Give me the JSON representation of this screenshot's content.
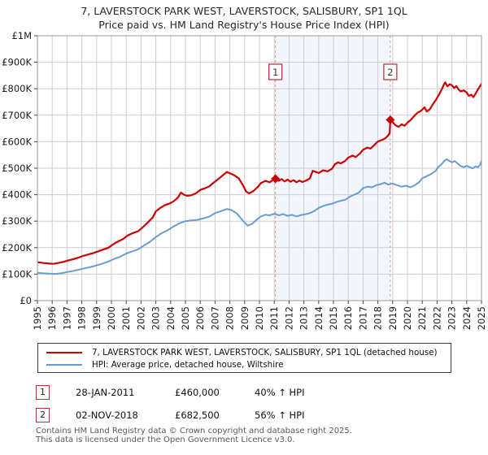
{
  "page": {
    "title_line1": "7, LAVERSTOCK PARK WEST, LAVERSTOCK, SALISBURY, SP1 1QL",
    "title_line2": "Price paid vs. HM Land Registry's House Price Index (HPI)"
  },
  "chart_data": {
    "type": "line",
    "title": "7, LAVERSTOCK PARK WEST, LAVERSTOCK, SALISBURY, SP1 1QL — Price paid vs. HM Land Registry's House Price Index (HPI)",
    "xlabel": "",
    "ylabel": "",
    "xlim": [
      1995,
      2025
    ],
    "ylim_gbp": [
      0,
      1000000
    ],
    "grid": true,
    "values_unit": "GBP thousands",
    "x_ticks": [
      1995,
      1996,
      1997,
      1998,
      1999,
      2000,
      2001,
      2002,
      2003,
      2004,
      2005,
      2006,
      2007,
      2008,
      2009,
      2010,
      2011,
      2012,
      2013,
      2014,
      2015,
      2016,
      2017,
      2018,
      2019,
      2020,
      2021,
      2022,
      2023,
      2024,
      2025
    ],
    "y_ticks": [
      {
        "v": 0,
        "label": "£0"
      },
      {
        "v": 100,
        "label": "£100K"
      },
      {
        "v": 200,
        "label": "£200K"
      },
      {
        "v": 300,
        "label": "£300K"
      },
      {
        "v": 400,
        "label": "£400K"
      },
      {
        "v": 500,
        "label": "£500K"
      },
      {
        "v": 600,
        "label": "£600K"
      },
      {
        "v": 700,
        "label": "£700K"
      },
      {
        "v": 800,
        "label": "£800K"
      },
      {
        "v": 900,
        "label": "£900K"
      },
      {
        "v": 1000,
        "label": "£1M"
      }
    ],
    "shaded_span": {
      "from": 2011.08,
      "to": 2018.84,
      "color": "#f2f5fc"
    },
    "colors": {
      "grid": "#cccccc",
      "border": "#999999",
      "dashed_line": "#e89090",
      "tick": "#444444"
    },
    "series": [
      {
        "name": "7, LAVERSTOCK PARK WEST, LAVERSTOCK, SALISBURY, SP1 1QL (detached house)",
        "color": "#cc0000",
        "width": 2.2,
        "points": [
          [
            1995.0,
            145
          ],
          [
            1995.4,
            142
          ],
          [
            1995.8,
            140
          ],
          [
            1996.1,
            139
          ],
          [
            1996.4,
            142
          ],
          [
            1996.8,
            147
          ],
          [
            1997.1,
            152
          ],
          [
            1997.4,
            156
          ],
          [
            1997.8,
            163
          ],
          [
            1998.1,
            169
          ],
          [
            1998.4,
            174
          ],
          [
            1998.8,
            180
          ],
          [
            1999.1,
            186
          ],
          [
            1999.4,
            192
          ],
          [
            1999.8,
            200
          ],
          [
            2000.1,
            212
          ],
          [
            2000.4,
            222
          ],
          [
            2000.8,
            233
          ],
          [
            2001.1,
            246
          ],
          [
            2001.4,
            254
          ],
          [
            2001.8,
            262
          ],
          [
            2002.1,
            276
          ],
          [
            2002.4,
            292
          ],
          [
            2002.8,
            315
          ],
          [
            2003.0,
            337
          ],
          [
            2003.3,
            350
          ],
          [
            2003.6,
            360
          ],
          [
            2003.9,
            366
          ],
          [
            2004.2,
            375
          ],
          [
            2004.5,
            390
          ],
          [
            2004.7,
            408
          ],
          [
            2004.9,
            400
          ],
          [
            2005.1,
            396
          ],
          [
            2005.4,
            398
          ],
          [
            2005.7,
            405
          ],
          [
            2006.0,
            418
          ],
          [
            2006.3,
            424
          ],
          [
            2006.6,
            431
          ],
          [
            2006.9,
            445
          ],
          [
            2007.2,
            458
          ],
          [
            2007.5,
            472
          ],
          [
            2007.8,
            486
          ],
          [
            2008.0,
            481
          ],
          [
            2008.3,
            473
          ],
          [
            2008.6,
            462
          ],
          [
            2008.9,
            434
          ],
          [
            2009.1,
            412
          ],
          [
            2009.3,
            405
          ],
          [
            2009.6,
            414
          ],
          [
            2009.9,
            430
          ],
          [
            2010.1,
            444
          ],
          [
            2010.4,
            452
          ],
          [
            2010.7,
            447
          ],
          [
            2010.9,
            455
          ],
          [
            2011.08,
            460
          ],
          [
            2011.3,
            452
          ],
          [
            2011.5,
            459
          ],
          [
            2011.7,
            450
          ],
          [
            2011.9,
            457
          ],
          [
            2012.1,
            449
          ],
          [
            2012.3,
            455
          ],
          [
            2012.5,
            447
          ],
          [
            2012.7,
            453
          ],
          [
            2012.9,
            448
          ],
          [
            2013.1,
            452
          ],
          [
            2013.4,
            461
          ],
          [
            2013.6,
            490
          ],
          [
            2013.8,
            486
          ],
          [
            2014.0,
            482
          ],
          [
            2014.3,
            492
          ],
          [
            2014.6,
            488
          ],
          [
            2014.9,
            498
          ],
          [
            2015.1,
            515
          ],
          [
            2015.3,
            522
          ],
          [
            2015.5,
            518
          ],
          [
            2015.8,
            528
          ],
          [
            2016.0,
            540
          ],
          [
            2016.3,
            548
          ],
          [
            2016.5,
            542
          ],
          [
            2016.8,
            556
          ],
          [
            2017.0,
            570
          ],
          [
            2017.3,
            578
          ],
          [
            2017.5,
            574
          ],
          [
            2017.8,
            590
          ],
          [
            2018.0,
            601
          ],
          [
            2018.3,
            607
          ],
          [
            2018.5,
            613
          ],
          [
            2018.7,
            624
          ],
          [
            2018.8,
            634
          ],
          [
            2018.84,
            682.5
          ],
          [
            2019.0,
            674
          ],
          [
            2019.2,
            662
          ],
          [
            2019.4,
            656
          ],
          [
            2019.6,
            666
          ],
          [
            2019.8,
            660
          ],
          [
            2020.0,
            672
          ],
          [
            2020.2,
            681
          ],
          [
            2020.5,
            700
          ],
          [
            2020.7,
            710
          ],
          [
            2020.9,
            716
          ],
          [
            2021.05,
            724
          ],
          [
            2021.15,
            730
          ],
          [
            2021.3,
            714
          ],
          [
            2021.5,
            722
          ],
          [
            2021.7,
            740
          ],
          [
            2021.9,
            756
          ],
          [
            2022.1,
            775
          ],
          [
            2022.3,
            796
          ],
          [
            2022.45,
            815
          ],
          [
            2022.55,
            824
          ],
          [
            2022.7,
            809
          ],
          [
            2022.85,
            817
          ],
          [
            2023.0,
            813
          ],
          [
            2023.15,
            803
          ],
          [
            2023.3,
            810
          ],
          [
            2023.45,
            797
          ],
          [
            2023.6,
            790
          ],
          [
            2023.8,
            794
          ],
          [
            2024.0,
            786
          ],
          [
            2024.15,
            773
          ],
          [
            2024.3,
            778
          ],
          [
            2024.45,
            768
          ],
          [
            2024.6,
            781
          ],
          [
            2024.75,
            797
          ],
          [
            2024.9,
            810
          ],
          [
            2025.0,
            818
          ]
        ]
      },
      {
        "name": "HPI: Average price, detached house, Wiltshire",
        "color": "#6b9bd2",
        "width": 2,
        "points": [
          [
            1995.0,
            105
          ],
          [
            1995.4,
            103
          ],
          [
            1995.8,
            102
          ],
          [
            1996.2,
            101
          ],
          [
            1996.6,
            103
          ],
          [
            1997.0,
            108
          ],
          [
            1997.4,
            112
          ],
          [
            1997.8,
            117
          ],
          [
            1998.2,
            122
          ],
          [
            1998.6,
            127
          ],
          [
            1999.0,
            133
          ],
          [
            1999.4,
            140
          ],
          [
            1999.8,
            148
          ],
          [
            2000.2,
            158
          ],
          [
            2000.6,
            166
          ],
          [
            2001.0,
            178
          ],
          [
            2001.4,
            186
          ],
          [
            2001.8,
            194
          ],
          [
            2002.2,
            208
          ],
          [
            2002.6,
            222
          ],
          [
            2003.0,
            240
          ],
          [
            2003.4,
            255
          ],
          [
            2003.8,
            266
          ],
          [
            2004.2,
            280
          ],
          [
            2004.6,
            292
          ],
          [
            2005.0,
            300
          ],
          [
            2005.4,
            303
          ],
          [
            2005.8,
            305
          ],
          [
            2006.2,
            310
          ],
          [
            2006.6,
            317
          ],
          [
            2007.0,
            330
          ],
          [
            2007.4,
            338
          ],
          [
            2007.8,
            346
          ],
          [
            2008.1,
            342
          ],
          [
            2008.5,
            328
          ],
          [
            2008.9,
            300
          ],
          [
            2009.2,
            283
          ],
          [
            2009.5,
            290
          ],
          [
            2009.8,
            305
          ],
          [
            2010.1,
            318
          ],
          [
            2010.4,
            324
          ],
          [
            2010.7,
            322
          ],
          [
            2011.0,
            328
          ],
          [
            2011.3,
            322
          ],
          [
            2011.6,
            327
          ],
          [
            2011.9,
            320
          ],
          [
            2012.2,
            324
          ],
          [
            2012.5,
            318
          ],
          [
            2012.8,
            323
          ],
          [
            2013.1,
            326
          ],
          [
            2013.4,
            330
          ],
          [
            2013.7,
            338
          ],
          [
            2014.0,
            350
          ],
          [
            2014.3,
            357
          ],
          [
            2014.6,
            362
          ],
          [
            2014.9,
            366
          ],
          [
            2015.2,
            372
          ],
          [
            2015.5,
            377
          ],
          [
            2015.8,
            381
          ],
          [
            2016.1,
            392
          ],
          [
            2016.4,
            400
          ],
          [
            2016.7,
            407
          ],
          [
            2017.0,
            425
          ],
          [
            2017.3,
            430
          ],
          [
            2017.6,
            428
          ],
          [
            2017.9,
            436
          ],
          [
            2018.2,
            440
          ],
          [
            2018.45,
            445
          ],
          [
            2018.7,
            438
          ],
          [
            2019.0,
            442
          ],
          [
            2019.3,
            436
          ],
          [
            2019.6,
            430
          ],
          [
            2019.9,
            434
          ],
          [
            2020.2,
            428
          ],
          [
            2020.5,
            436
          ],
          [
            2020.8,
            448
          ],
          [
            2021.0,
            462
          ],
          [
            2021.3,
            470
          ],
          [
            2021.6,
            478
          ],
          [
            2021.9,
            490
          ],
          [
            2022.1,
            505
          ],
          [
            2022.3,
            515
          ],
          [
            2022.5,
            528
          ],
          [
            2022.65,
            534
          ],
          [
            2022.8,
            528
          ],
          [
            2023.0,
            522
          ],
          [
            2023.2,
            527
          ],
          [
            2023.4,
            517
          ],
          [
            2023.6,
            508
          ],
          [
            2023.8,
            504
          ],
          [
            2024.0,
            509
          ],
          [
            2024.2,
            504
          ],
          [
            2024.4,
            499
          ],
          [
            2024.6,
            507
          ],
          [
            2024.75,
            503
          ],
          [
            2024.9,
            512
          ],
          [
            2025.0,
            527
          ]
        ]
      }
    ],
    "sales": [
      {
        "label": "1",
        "x": 2011.08,
        "value": 460,
        "date": "28-JAN-2011",
        "price": "£460,000",
        "hpi_change": "40% ↑ HPI"
      },
      {
        "label": "2",
        "x": 2018.84,
        "value": 682.5,
        "date": "02-NOV-2018",
        "price": "£682,500",
        "hpi_change": "56% ↑ HPI"
      }
    ],
    "legend_position": "bottom"
  },
  "footer": {
    "line1": "Contains HM Land Registry data © Crown copyright and database right 2025.",
    "line2": "This data is licensed under the Open Government Licence v3.0."
  }
}
